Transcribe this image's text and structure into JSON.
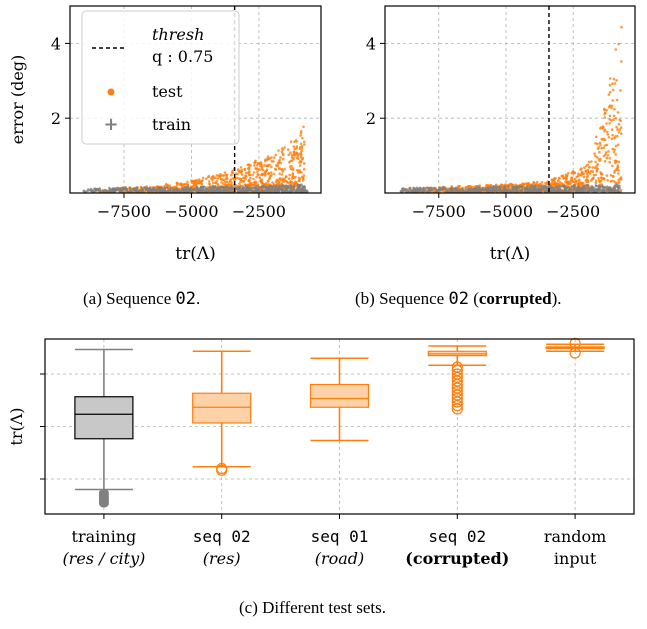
{
  "colors": {
    "test": "#ff7f0e",
    "train": "#808080",
    "thresh": "#000000",
    "grid": "#b0b0b0"
  },
  "captions": {
    "a_prefix": "(a) Sequence ",
    "a_code": "02",
    "a_suffix": ".",
    "b_prefix": "(b) Sequence ",
    "b_code": "02",
    "b_open": " (",
    "b_bold": "corrupted",
    "b_suffix": ").",
    "c": "(c) Different test sets."
  },
  "legend": {
    "thresh_label": "thresh",
    "q_label": "q : 0.75",
    "test_label": "test",
    "train_label": "train"
  },
  "chart_data": [
    {
      "type": "scatter",
      "id": "a",
      "xlabel": "tr(Λ)",
      "ylabel": "error (deg)",
      "xlim": [
        -9500,
        -200
      ],
      "ylim": [
        0,
        5
      ],
      "xticks": [
        -7500,
        -5000,
        -2500
      ],
      "xtick_labels": [
        "−7500",
        "−5000",
        "−2500"
      ],
      "yticks": [
        2,
        4
      ],
      "ytick_labels": [
        "2",
        "4"
      ],
      "grid": true,
      "legend_position": "top-left",
      "threshold_x": -3400,
      "series": [
        {
          "name": "test",
          "x_range": [
            -9000,
            -800
          ],
          "y_max_profile": [
            [
              -9000,
              0.08
            ],
            [
              -6500,
              0.15
            ],
            [
              -5000,
              0.3
            ],
            [
              -3500,
              0.6
            ],
            [
              -2000,
              1.0
            ],
            [
              -1200,
              1.4
            ],
            [
              -800,
              1.9
            ]
          ]
        },
        {
          "name": "train",
          "x_range": [
            -9000,
            -700
          ],
          "y_max_profile": [
            [
              -9000,
              0.1
            ],
            [
              -3000,
              0.15
            ],
            [
              -700,
              0.2
            ]
          ]
        }
      ]
    },
    {
      "type": "scatter",
      "id": "b",
      "xlabel": "tr(Λ)",
      "xlim": [
        -9500,
        -200
      ],
      "ylim": [
        0,
        5
      ],
      "xticks": [
        -7500,
        -5000,
        -2500
      ],
      "xtick_labels": [
        "−7500",
        "−5000",
        "−2500"
      ],
      "yticks": [
        2,
        4
      ],
      "ytick_labels": [
        "2",
        "4"
      ],
      "grid": true,
      "threshold_x": -3400,
      "series": [
        {
          "name": "test",
          "x_range": [
            -9000,
            -700
          ],
          "y_max_profile": [
            [
              -9000,
              0.1
            ],
            [
              -5000,
              0.2
            ],
            [
              -3400,
              0.3
            ],
            [
              -2000,
              0.7
            ],
            [
              -1400,
              2.0
            ],
            [
              -1000,
              3.5
            ],
            [
              -700,
              4.9
            ]
          ]
        },
        {
          "name": "train",
          "x_range": [
            -9000,
            -700
          ],
          "y_max_profile": [
            [
              -9000,
              0.1
            ],
            [
              -700,
              0.2
            ]
          ]
        }
      ]
    },
    {
      "type": "box",
      "id": "c",
      "ylabel": "tr(Λ)",
      "grid": true,
      "categories": [
        {
          "line1": "training",
          "line2": "(res / city)",
          "line1_mono": false,
          "line2_style": "italic"
        },
        {
          "line1": "seq 02",
          "line2": "(res)",
          "line1_mono": true,
          "line2_style": "italic"
        },
        {
          "line1": "seq 01",
          "line2": "(road)",
          "line1_mono": true,
          "line2_style": "italic"
        },
        {
          "line1": "seq 02",
          "line2": "(corrupted)",
          "line1_mono": true,
          "line2_style": "bold"
        },
        {
          "line1": "random",
          "line2": "input",
          "line1_mono": false,
          "line2_style": "normal"
        }
      ],
      "ylim": [
        0,
        1
      ],
      "boxes": [
        {
          "color": "train",
          "whislo": 0.14,
          "q1": 0.43,
          "med": 0.57,
          "q3": 0.67,
          "whishi": 0.94,
          "fliers": [
            0.12,
            0.11,
            0.1,
            0.09,
            0.08,
            0.07,
            0.06
          ]
        },
        {
          "color": "test",
          "whislo": 0.27,
          "q1": 0.52,
          "med": 0.61,
          "q3": 0.69,
          "whishi": 0.93,
          "fliers": [
            0.26,
            0.25
          ]
        },
        {
          "color": "test",
          "whislo": 0.42,
          "q1": 0.61,
          "med": 0.66,
          "q3": 0.74,
          "whishi": 0.89,
          "fliers": []
        },
        {
          "color": "test",
          "whislo": 0.85,
          "q1": 0.905,
          "med": 0.915,
          "q3": 0.93,
          "whishi": 0.96,
          "fliers": [
            0.84,
            0.82,
            0.8,
            0.78,
            0.76,
            0.74,
            0.72,
            0.7,
            0.68,
            0.66,
            0.64,
            0.62,
            0.6
          ]
        },
        {
          "color": "test",
          "whislo": 0.93,
          "q1": 0.945,
          "med": 0.95,
          "q3": 0.955,
          "whishi": 0.97,
          "fliers": [
            0.975,
            0.92
          ]
        }
      ]
    }
  ]
}
